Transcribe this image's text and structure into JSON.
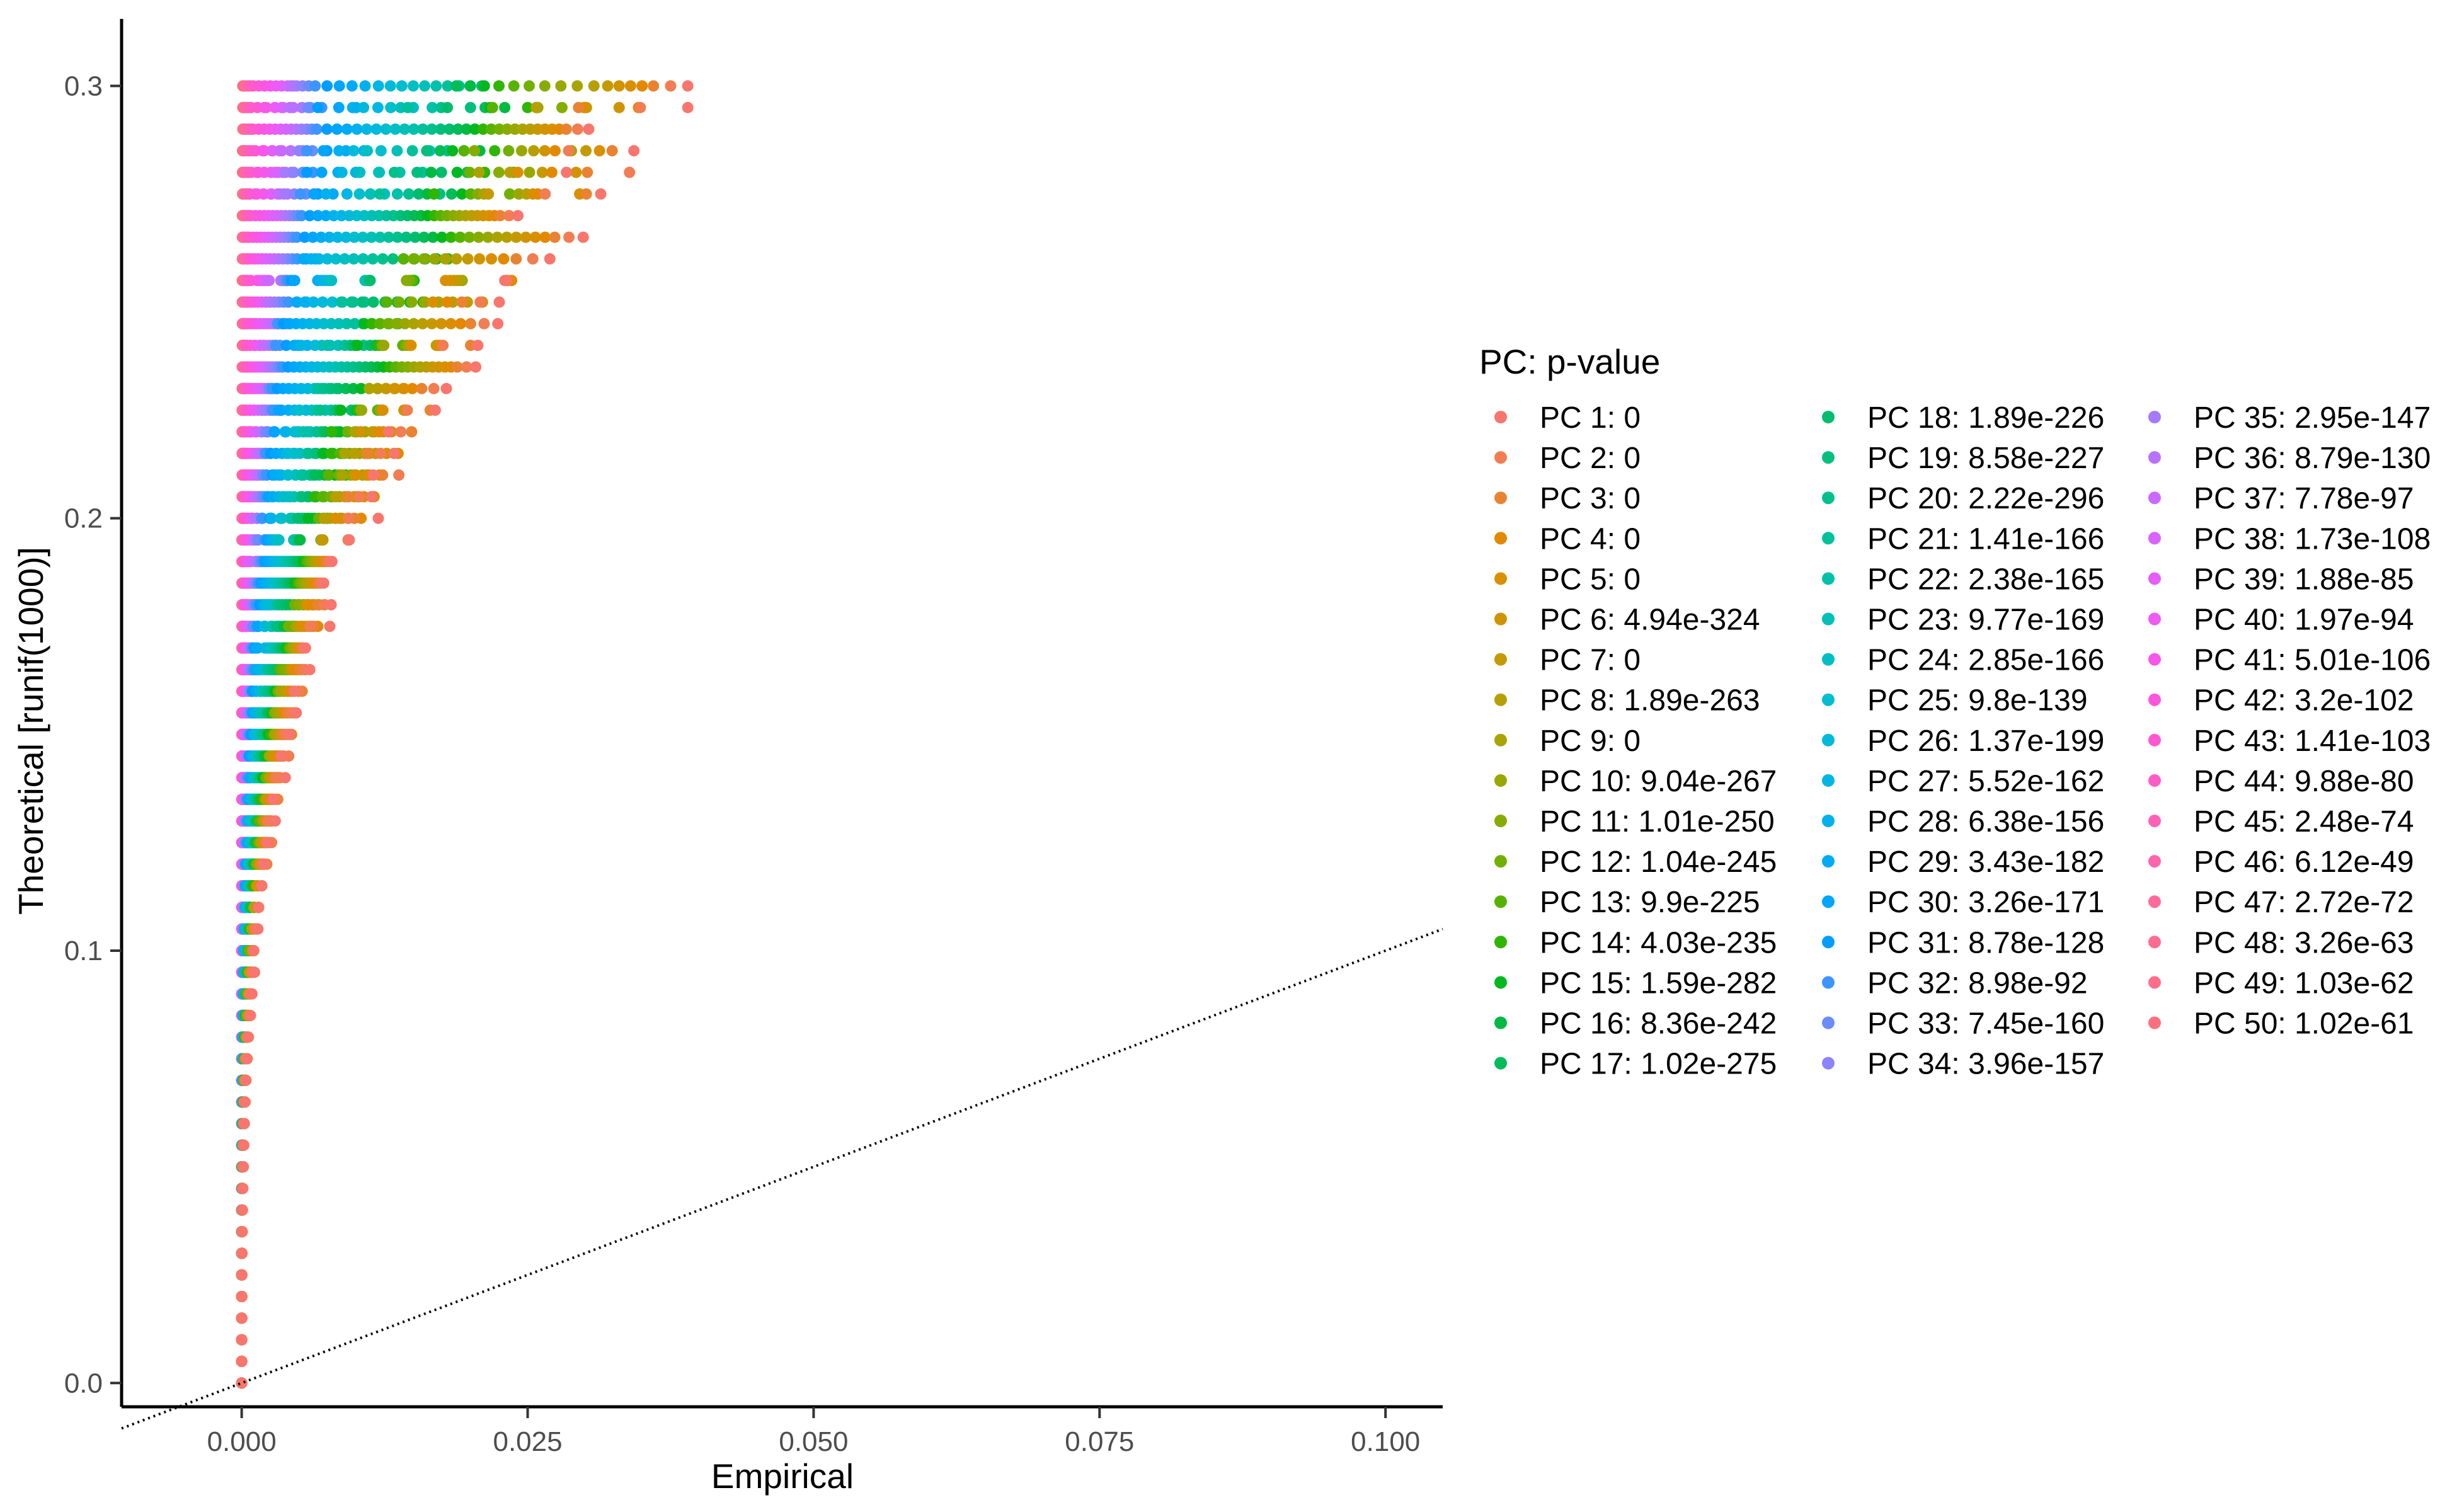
{
  "chart_data": {
    "type": "scatter",
    "xlabel": "Empirical",
    "ylabel": "Theoretical [runif(1000)]",
    "xlim": [
      -0.0105,
      0.105
    ],
    "ylim": [
      -0.0055,
      0.3155
    ],
    "x_ticks": [
      0.0,
      0.025,
      0.05,
      0.075,
      0.1
    ],
    "x_tick_labels": [
      "0.000",
      "0.025",
      "0.050",
      "0.075",
      "0.100"
    ],
    "y_ticks": [
      0.0,
      0.1,
      0.2,
      0.3
    ],
    "y_tick_labels": [
      "0.0",
      "0.1",
      "0.2",
      "0.3"
    ],
    "grid": false,
    "reference_line": {
      "style": "dotted",
      "slope": 1,
      "intercept": 0
    },
    "legend": {
      "title": "PC: p-value",
      "placement": "right",
      "columns": 3
    },
    "series": [
      {
        "name": "PC 1: 0",
        "color": "#F8766D",
        "max_x": 0.039
      },
      {
        "name": "PC 2: 0",
        "color": "#F27D52",
        "max_x": 0.0375
      },
      {
        "name": "PC 3: 0",
        "color": "#EA8331",
        "max_x": 0.036
      },
      {
        "name": "PC 4: 0",
        "color": "#E38900",
        "max_x": 0.035
      },
      {
        "name": "PC 5: 0",
        "color": "#DA8F00",
        "max_x": 0.034
      },
      {
        "name": "PC 6: 4.94e-324",
        "color": "#D09400",
        "max_x": 0.033
      },
      {
        "name": "PC 7: 0",
        "color": "#C49A00",
        "max_x": 0.032
      },
      {
        "name": "PC 8: 1.89e-263",
        "color": "#B79F00",
        "max_x": 0.031
      },
      {
        "name": "PC 9: 0",
        "color": "#A9A400",
        "max_x": 0.03
      },
      {
        "name": "PC 10: 9.04e-267",
        "color": "#99A800",
        "max_x": 0.029
      },
      {
        "name": "PC 11: 1.01e-250",
        "color": "#87AC00",
        "max_x": 0.028
      },
      {
        "name": "PC 12: 1.04e-245",
        "color": "#72B000",
        "max_x": 0.027
      },
      {
        "name": "PC 13: 9.9e-225",
        "color": "#58B300",
        "max_x": 0.026
      },
      {
        "name": "PC 14: 4.03e-235",
        "color": "#2FB600",
        "max_x": 0.025
      },
      {
        "name": "PC 15: 1.59e-282",
        "color": "#00B81F",
        "max_x": 0.024
      },
      {
        "name": "PC 16: 8.36e-242",
        "color": "#00BA42",
        "max_x": 0.023
      },
      {
        "name": "PC 17: 1.02e-275",
        "color": "#00BC59",
        "max_x": 0.022
      },
      {
        "name": "PC 18: 1.89e-226",
        "color": "#00BD6D",
        "max_x": 0.021
      },
      {
        "name": "PC 19: 8.58e-227",
        "color": "#00BF7D",
        "max_x": 0.02
      },
      {
        "name": "PC 20: 2.22e-296",
        "color": "#00C08D",
        "max_x": 0.019
      },
      {
        "name": "PC 21: 1.41e-166",
        "color": "#00C19C",
        "max_x": 0.018
      },
      {
        "name": "PC 22: 2.38e-165",
        "color": "#00C1AA",
        "max_x": 0.017
      },
      {
        "name": "PC 23: 9.77e-169",
        "color": "#00C0B8",
        "max_x": 0.016
      },
      {
        "name": "PC 24: 2.85e-166",
        "color": "#00BFC4",
        "max_x": 0.015
      },
      {
        "name": "PC 25: 9.8e-139",
        "color": "#00BDD0",
        "max_x": 0.014
      },
      {
        "name": "PC 26: 1.37e-199",
        "color": "#00BADB",
        "max_x": 0.013
      },
      {
        "name": "PC 27: 5.52e-162",
        "color": "#00B6E5",
        "max_x": 0.012
      },
      {
        "name": "PC 28: 6.38e-156",
        "color": "#00B1EE",
        "max_x": 0.011
      },
      {
        "name": "PC 29: 3.43e-182",
        "color": "#00ABF6",
        "max_x": 0.01
      },
      {
        "name": "PC 30: 3.26e-171",
        "color": "#00A5FC",
        "max_x": 0.009
      },
      {
        "name": "PC 31: 8.78e-128",
        "color": "#009DFF",
        "max_x": 0.008
      },
      {
        "name": "PC 32: 8.98e-92",
        "color": "#3D95FF",
        "max_x": 0.007
      },
      {
        "name": "PC 33: 7.45e-160",
        "color": "#6A8CFF",
        "max_x": 0.0065
      },
      {
        "name": "PC 34: 3.96e-157",
        "color": "#8B83FF",
        "max_x": 0.006
      },
      {
        "name": "PC 35: 2.95e-147",
        "color": "#A57AFF",
        "max_x": 0.0055
      },
      {
        "name": "PC 36: 8.79e-130",
        "color": "#B971FF",
        "max_x": 0.005
      },
      {
        "name": "PC 37: 7.78e-97",
        "color": "#CB69FF",
        "max_x": 0.0045
      },
      {
        "name": "PC 38: 1.73e-108",
        "color": "#D963FE",
        "max_x": 0.004
      },
      {
        "name": "PC 39: 1.88e-85",
        "color": "#E55EF9",
        "max_x": 0.0035
      },
      {
        "name": "PC 40: 1.97e-94",
        "color": "#EF5AF2",
        "max_x": 0.003
      },
      {
        "name": "PC 41: 5.01e-106",
        "color": "#F757E9",
        "max_x": 0.0025
      },
      {
        "name": "PC 42: 3.2e-102",
        "color": "#FC56DF",
        "max_x": 0.002
      },
      {
        "name": "PC 43: 1.41e-103",
        "color": "#FF58D3",
        "max_x": 0.0015
      },
      {
        "name": "PC 44: 9.88e-80",
        "color": "#FF5CC6",
        "max_x": 0.001
      },
      {
        "name": "PC 45: 2.48e-74",
        "color": "#FF61B8",
        "max_x": 0.0008
      },
      {
        "name": "PC 46: 6.12e-49",
        "color": "#FF65AA",
        "max_x": 0.0006
      },
      {
        "name": "PC 47: 2.72e-72",
        "color": "#FF6A9A",
        "max_x": 0.0004
      },
      {
        "name": "PC 48: 3.26e-63",
        "color": "#FF6C90",
        "max_x": 0.0003
      },
      {
        "name": "PC 49: 1.03e-62",
        "color": "#FE6E8A",
        "max_x": 0.0002
      },
      {
        "name": "PC 50: 1.02e-61",
        "color": "#FC717F",
        "max_x": 0.0001
      }
    ]
  }
}
